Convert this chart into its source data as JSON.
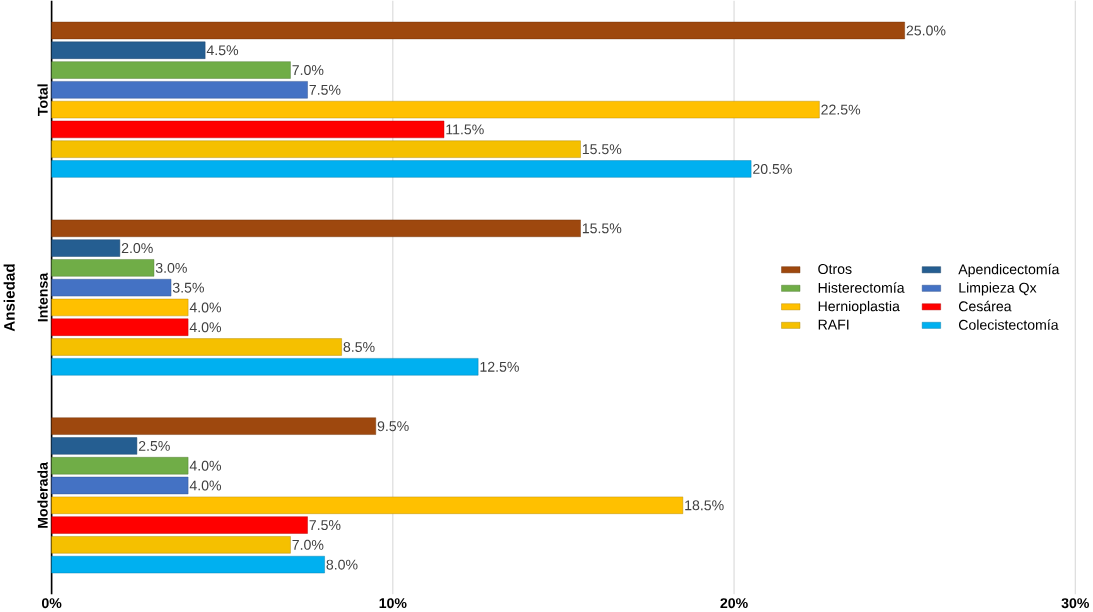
{
  "chart_data": {
    "type": "bar",
    "orientation": "horizontal",
    "ylabel": "Ansiedad",
    "categories": [
      "Total",
      "Intensa",
      "Moderada"
    ],
    "series": [
      {
        "name": "Otros",
        "color": "#9e480e",
        "values": [
          25.0,
          15.5,
          9.5
        ],
        "value_labels": [
          "25.0%",
          "15.5%",
          "9.5%"
        ]
      },
      {
        "name": "Apendicectomía",
        "color": "#255e91",
        "values": [
          4.5,
          2.0,
          2.5
        ],
        "value_labels": [
          "4.5%",
          "2.0%",
          "2.5%"
        ]
      },
      {
        "name": "Histerectomía",
        "color": "#70ad47",
        "values": [
          7.0,
          3.0,
          4.0
        ],
        "value_labels": [
          "7.0%",
          "3.0%",
          "4.0%"
        ]
      },
      {
        "name": "Limpieza Qx",
        "color": "#4472c4",
        "values": [
          7.5,
          3.5,
          4.0
        ],
        "value_labels": [
          "7.5%",
          "3.5%",
          "4.0%"
        ]
      },
      {
        "name": "Hernioplastia",
        "color": "#ffc000",
        "values": [
          22.5,
          4.0,
          18.5
        ],
        "value_labels": [
          "22.5%",
          "4.0%",
          "18.5%"
        ]
      },
      {
        "name": "Cesárea",
        "color": "#ff0000",
        "values": [
          11.5,
          4.0,
          7.5
        ],
        "value_labels": [
          "11.5%",
          "4.0%",
          "7.5%"
        ]
      },
      {
        "name": "RAFI",
        "color": "#f5c000",
        "values": [
          15.5,
          8.5,
          7.0
        ],
        "value_labels": [
          "15.5%",
          "8.5%",
          "7.0%"
        ]
      },
      {
        "name": "Colecistectomía",
        "color": "#00b0f0",
        "values": [
          20.5,
          12.5,
          8.0
        ],
        "value_labels": [
          "20.5%",
          "12.5%",
          "8.0%"
        ]
      }
    ],
    "xlim": [
      0,
      30
    ],
    "xticks": [
      {
        "value": 0,
        "label": "0%"
      },
      {
        "value": 10,
        "label": "10%"
      },
      {
        "value": 20,
        "label": "20%"
      },
      {
        "value": 30,
        "label": "30%"
      }
    ],
    "grid": "x",
    "legend": "right"
  }
}
